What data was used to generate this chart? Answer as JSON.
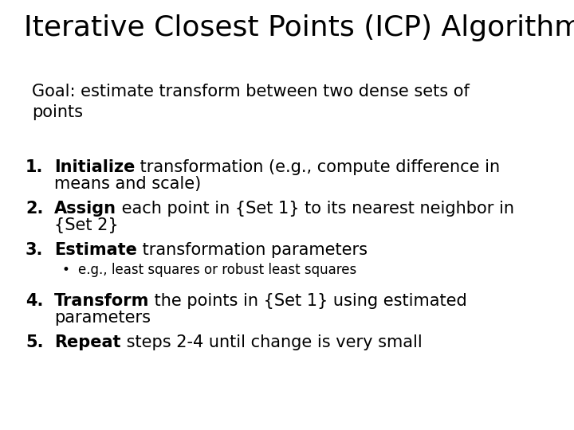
{
  "title": "Iterative Closest Points (ICP) Algorithm",
  "bg_color": "#ffffff",
  "text_color": "#000000",
  "title_fontsize": 26,
  "goal_fontsize": 15,
  "item_fontsize": 15,
  "bullet_fontsize": 12,
  "font_family": "DejaVu Sans"
}
